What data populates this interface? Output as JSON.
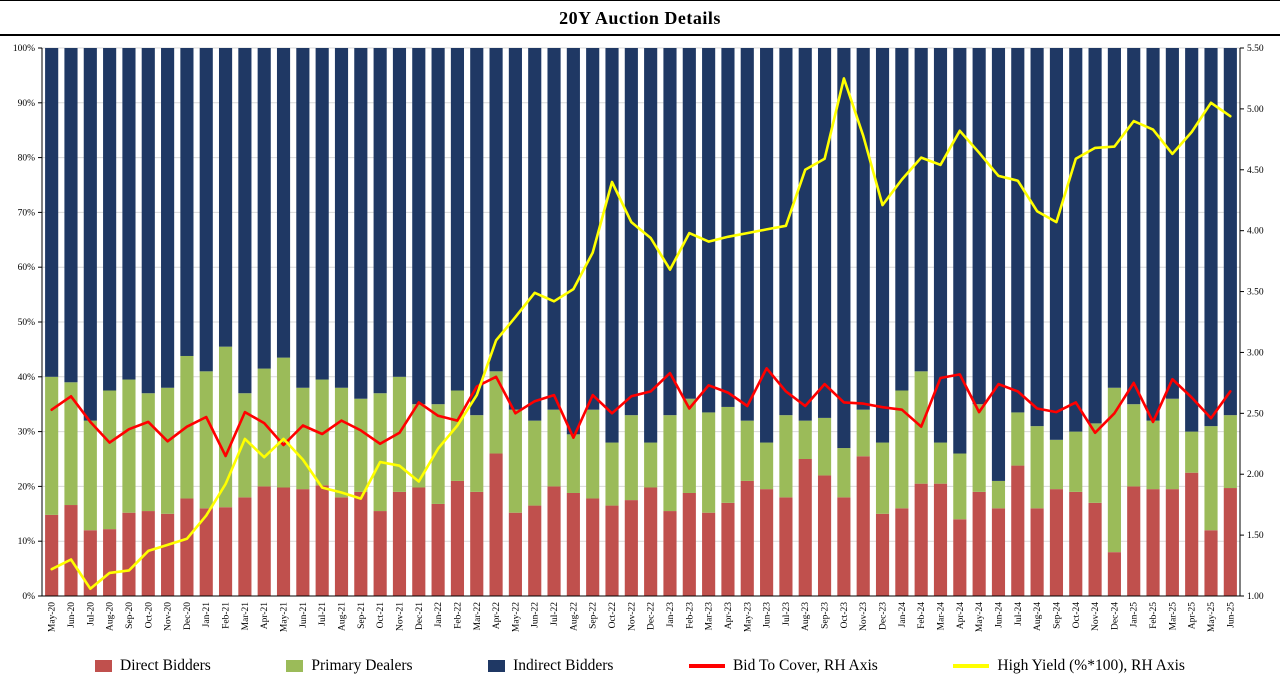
{
  "chart_data": {
    "type": "bar",
    "subtype": "stacked-bar-with-lines",
    "title": "20Y Auction Details",
    "xlabel": "",
    "ylabel": "",
    "grid": true,
    "legend_position": "bottom",
    "left_axis": {
      "min": 0,
      "max": 100,
      "step": 10,
      "ticks": [
        "0%",
        "10%",
        "20%",
        "30%",
        "40%",
        "50%",
        "60%",
        "70%",
        "80%",
        "90%",
        "100%"
      ]
    },
    "right_axis": {
      "min": 1.0,
      "max": 5.5,
      "step": 0.5,
      "ticks": [
        "1.00",
        "1.50",
        "2.00",
        "2.50",
        "3.00",
        "3.50",
        "4.00",
        "4.50",
        "5.00",
        "5.50"
      ]
    },
    "categories": [
      "May-20",
      "Jun-20",
      "Jul-20",
      "Aug-20",
      "Sep-20",
      "Oct-20",
      "Nov-20",
      "Dec-20",
      "Jan-21",
      "Feb-21",
      "Mar-21",
      "Apr-21",
      "May-21",
      "Jun-21",
      "Jul-21",
      "Aug-21",
      "Sep-21",
      "Oct-21",
      "Nov-21",
      "Dec-21",
      "Jan-22",
      "Feb-22",
      "Mar-22",
      "Apr-22",
      "May-22",
      "Jun-22",
      "Jul-22",
      "Aug-22",
      "Sep-22",
      "Oct-22",
      "Nov-22",
      "Dec-22",
      "Jan-23",
      "Feb-23",
      "Mar-23",
      "Apr-23",
      "May-23",
      "Jun-23",
      "Jul-23",
      "Aug-23",
      "Sep-23",
      "Oct-23",
      "Nov-23",
      "Dec-23",
      "Jan-24",
      "Feb-24",
      "Mar-24",
      "Apr-24",
      "May-24",
      "Jun-24",
      "Jul-24",
      "Aug-24",
      "Sep-24",
      "Oct-24",
      "Nov-24",
      "Dec-24",
      "Jan-25",
      "Feb-25",
      "Mar-25",
      "Apr-25",
      "May-25",
      "Jun-25"
    ],
    "series": [
      {
        "name": "Direct Bidders",
        "type": "bar",
        "axis": "left",
        "color": "#C0504D",
        "values": [
          14.8,
          16.6,
          12,
          12.2,
          15.2,
          15.5,
          15,
          17.8,
          16,
          16.2,
          18,
          20,
          19.8,
          19.5,
          20.2,
          18,
          19,
          15.5,
          19,
          19.8,
          16.8,
          21,
          19,
          26,
          15.2,
          16.5,
          20,
          18.8,
          17.8,
          16.5,
          17.5,
          19.8,
          15.5,
          18.8,
          15.2,
          17,
          21,
          19.5,
          18,
          25,
          22,
          18,
          25.5,
          15,
          16,
          20.5,
          20.5,
          14,
          19,
          16,
          23.8,
          16,
          19.5,
          19,
          17,
          8,
          20,
          19.5,
          19.5,
          22.5,
          12,
          19.7
        ]
      },
      {
        "name": "Primary Dealers",
        "type": "bar",
        "axis": "left",
        "color": "#9BBB59",
        "values": [
          25.2,
          22.4,
          20,
          25.3,
          24.3,
          21.5,
          23,
          26,
          25,
          29.3,
          19,
          21.5,
          23.7,
          18.5,
          19.3,
          20,
          17,
          21.5,
          21,
          15.2,
          18.2,
          16.5,
          14,
          15,
          18.8,
          15.5,
          14,
          10.7,
          16.2,
          11.5,
          15.5,
          8.2,
          17.5,
          17.2,
          18.3,
          17.5,
          11,
          8.5,
          15,
          7,
          10.5,
          9,
          8.5,
          13,
          21.5,
          20.5,
          7.5,
          12,
          16,
          5,
          9.7,
          15,
          9,
          11,
          14.5,
          30,
          15,
          12.5,
          16.5,
          7.5,
          19,
          13.3
        ]
      },
      {
        "name": "Indirect Bidders",
        "type": "bar",
        "axis": "left",
        "color": "#1F3864",
        "values": [
          60,
          61,
          68,
          62.5,
          60.5,
          63,
          62,
          56.2,
          59,
          54.5,
          63,
          58.5,
          56.5,
          62,
          60.5,
          62,
          64,
          63,
          60,
          65,
          65,
          62.5,
          67,
          59,
          66,
          68,
          66,
          70.5,
          66,
          72,
          67,
          72,
          67,
          64,
          66.5,
          65.5,
          68,
          72,
          67,
          68,
          67.5,
          73,
          66,
          72,
          62.5,
          59,
          72,
          74,
          65,
          79,
          66.5,
          69,
          71.5,
          70,
          68.5,
          62,
          65,
          68,
          64,
          70,
          69,
          67
        ]
      },
      {
        "name": "Bid To Cover, RH Axis",
        "type": "line",
        "axis": "right",
        "color": "#FF0000",
        "values": [
          2.53,
          2.64,
          2.43,
          2.26,
          2.37,
          2.43,
          2.27,
          2.39,
          2.47,
          2.15,
          2.51,
          2.42,
          2.24,
          2.4,
          2.33,
          2.44,
          2.36,
          2.25,
          2.34,
          2.59,
          2.48,
          2.44,
          2.72,
          2.8,
          2.5,
          2.6,
          2.65,
          2.3,
          2.65,
          2.5,
          2.64,
          2.68,
          2.83,
          2.54,
          2.73,
          2.67,
          2.56,
          2.87,
          2.68,
          2.56,
          2.74,
          2.59,
          2.58,
          2.55,
          2.53,
          2.39,
          2.79,
          2.82,
          2.51,
          2.74,
          2.68,
          2.54,
          2.51,
          2.59,
          2.34,
          2.5,
          2.75,
          2.43,
          2.78,
          2.63,
          2.46,
          2.68
        ]
      },
      {
        "name": "High Yield (%*100), RH Axis",
        "type": "line",
        "axis": "right",
        "color": "#FFFF00",
        "values": [
          1.22,
          1.3,
          1.06,
          1.19,
          1.21,
          1.37,
          1.42,
          1.47,
          1.66,
          1.92,
          2.29,
          2.14,
          2.29,
          2.12,
          1.89,
          1.85,
          1.8,
          2.1,
          2.07,
          1.94,
          2.21,
          2.4,
          2.65,
          3.1,
          3.29,
          3.49,
          3.42,
          3.52,
          3.82,
          4.4,
          4.07,
          3.94,
          3.68,
          3.98,
          3.91,
          3.95,
          3.98,
          4.01,
          4.04,
          4.5,
          4.59,
          5.25,
          4.78,
          4.21,
          4.42,
          4.6,
          4.54,
          4.82,
          4.64,
          4.45,
          4.41,
          4.16,
          4.07,
          4.59,
          4.68,
          4.69,
          4.9,
          4.83,
          4.63,
          4.81,
          5.05,
          4.94
        ]
      }
    ],
    "style": {
      "gridline_color": "#D9D9D9",
      "axis_color": "#000000",
      "background": "#FFFFFF"
    }
  }
}
